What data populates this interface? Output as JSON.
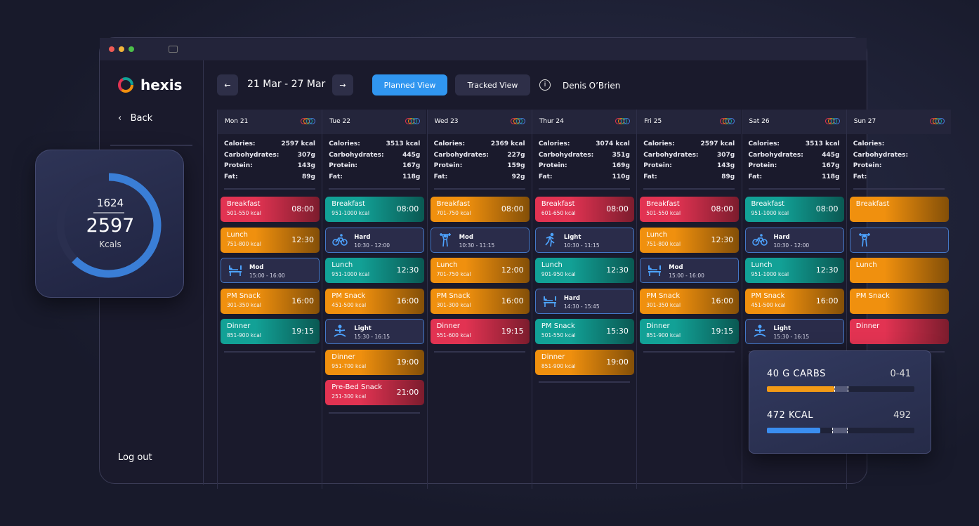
{
  "app": {
    "logo": "hexis",
    "back": "Back",
    "logout": "Log out"
  },
  "header": {
    "date_range": "21 Mar - 27 Mar",
    "planned": "Planned View",
    "tracked": "Tracked View",
    "user": "Denis O’Brien"
  },
  "ring": {
    "consumed": 1624,
    "target": 2597,
    "unit": "Kcals"
  },
  "nutrient_labels": [
    "Calories:",
    "Carbohydrates:",
    "Protein:",
    "Fat:"
  ],
  "days": [
    {
      "name": "Mon 21",
      "stats": [
        "2597 kcal",
        "307g",
        "143g",
        "89g"
      ],
      "items": [
        {
          "title": "Breakfast",
          "kcal": "501-550 kcal",
          "time": "08:00",
          "color": "#e23352"
        },
        {
          "title": "Lunch",
          "kcal": "751-800 kcal",
          "time": "12:30",
          "color": "#f0900e"
        },
        {
          "intensity": "Mod",
          "time": "15:00 - 16:00",
          "icon": "bench"
        },
        {
          "title": "PM Snack",
          "kcal": "301-350 kcal",
          "time": "16:00",
          "color": "#f0900e"
        },
        {
          "title": "Dinner",
          "kcal": "851-900 kcal",
          "time": "19:15",
          "color": "#12a196"
        }
      ]
    },
    {
      "name": "Tue 22",
      "stats": [
        "3513 kcal",
        "445g",
        "167g",
        "118g"
      ],
      "items": [
        {
          "title": "Breakfast",
          "kcal": "951-1000 kcal",
          "time": "08:00",
          "color": "#12a196"
        },
        {
          "intensity": "Hard",
          "time": "10:30 - 12:00",
          "icon": "bike"
        },
        {
          "title": "Lunch",
          "kcal": "951-1000 kcal",
          "time": "12:30",
          "color": "#12a196"
        },
        {
          "title": "PM Snack",
          "kcal": "451-500 kcal",
          "time": "16:00",
          "color": "#f0900e"
        },
        {
          "intensity": "Light",
          "time": "15:30 - 16:15",
          "icon": "yoga"
        },
        {
          "title": "Dinner",
          "kcal": "951-700 kcal",
          "time": "19:00",
          "color": "#f0900e"
        },
        {
          "title": "Pre-Bed Snack",
          "kcal": "251-300 kcal",
          "time": "21:00",
          "color": "#e23352"
        }
      ]
    },
    {
      "name": "Wed 23",
      "stats": [
        "2369 kcal",
        "227g",
        "159g",
        "92g"
      ],
      "items": [
        {
          "title": "Breakfast",
          "kcal": "701-750 kcal",
          "time": "08:00",
          "color": "#f0900e"
        },
        {
          "intensity": "Mod",
          "time": "10:30 - 11:15",
          "icon": "weights"
        },
        {
          "title": "Lunch",
          "kcal": "701-750 kcal",
          "time": "12:00",
          "color": "#f0900e"
        },
        {
          "title": "PM Snack",
          "kcal": "301-300 kcal",
          "time": "16:00",
          "color": "#f0900e"
        },
        {
          "title": "Dinner",
          "kcal": "551-600 kcal",
          "time": "19:15",
          "color": "#e23352"
        }
      ]
    },
    {
      "name": "Thur 24",
      "stats": [
        "3074 kcal",
        "351g",
        "169g",
        "110g"
      ],
      "items": [
        {
          "title": "Breakfast",
          "kcal": "601-650 kcal",
          "time": "08:00",
          "color": "#e23352"
        },
        {
          "intensity": "Light",
          "time": "10:30 - 11:15",
          "icon": "run"
        },
        {
          "title": "Lunch",
          "kcal": "901-950 kcal",
          "time": "12:30",
          "color": "#12a196"
        },
        {
          "intensity": "Hard",
          "time": "14:30 - 15:45",
          "icon": "bench"
        },
        {
          "title": "PM Snack",
          "kcal": "501-550 kcal",
          "time": "15:30",
          "color": "#12a196"
        },
        {
          "title": "Dinner",
          "kcal": "851-900 kcal",
          "time": "19:00",
          "color": "#f0900e"
        }
      ]
    },
    {
      "name": "Fri 25",
      "stats": [
        "2597 kcal",
        "307g",
        "143g",
        "89g"
      ],
      "items": [
        {
          "title": "Breakfast",
          "kcal": "501-550 kcal",
          "time": "08:00",
          "color": "#e23352"
        },
        {
          "title": "Lunch",
          "kcal": "751-800 kcal",
          "time": "12:30",
          "color": "#f0900e"
        },
        {
          "intensity": "Mod",
          "time": "15:00 - 16:00",
          "icon": "bench"
        },
        {
          "title": "PM Snack",
          "kcal": "301-350 kcal",
          "time": "16:00",
          "color": "#f0900e"
        },
        {
          "title": "Dinner",
          "kcal": "851-900 kcal",
          "time": "19:15",
          "color": "#12a196"
        }
      ]
    },
    {
      "name": "Sat 26",
      "stats": [
        "3513 kcal",
        "445g",
        "167g",
        "118g"
      ],
      "items": [
        {
          "title": "Breakfast",
          "kcal": "951-1000 kcal",
          "time": "08:00",
          "color": "#12a196"
        },
        {
          "intensity": "Hard",
          "time": "10:30 - 12:00",
          "icon": "bike"
        },
        {
          "title": "Lunch",
          "kcal": "951-1000 kcal",
          "time": "12:30",
          "color": "#12a196"
        },
        {
          "title": "PM Snack",
          "kcal": "451-500 kcal",
          "time": "16:00",
          "color": "#f0900e"
        },
        {
          "intensity": "Light",
          "time": "15:30 - 16:15",
          "icon": "yoga"
        }
      ]
    },
    {
      "name": "Sun 27",
      "items": [
        {
          "title": "Breakfast",
          "color": "#f0900e"
        },
        {
          "icon": "weights"
        },
        {
          "title": "Lunch",
          "color": "#f0900e"
        },
        {
          "title": "PM Snack",
          "color": "#f0900e"
        },
        {
          "title": "Dinner",
          "color": "#e23352"
        }
      ]
    }
  ],
  "popup": {
    "carbs": "40 G  CARBS",
    "carbs_target": "0-41",
    "kcal": "472  KCAL",
    "kcal_target": "492"
  }
}
